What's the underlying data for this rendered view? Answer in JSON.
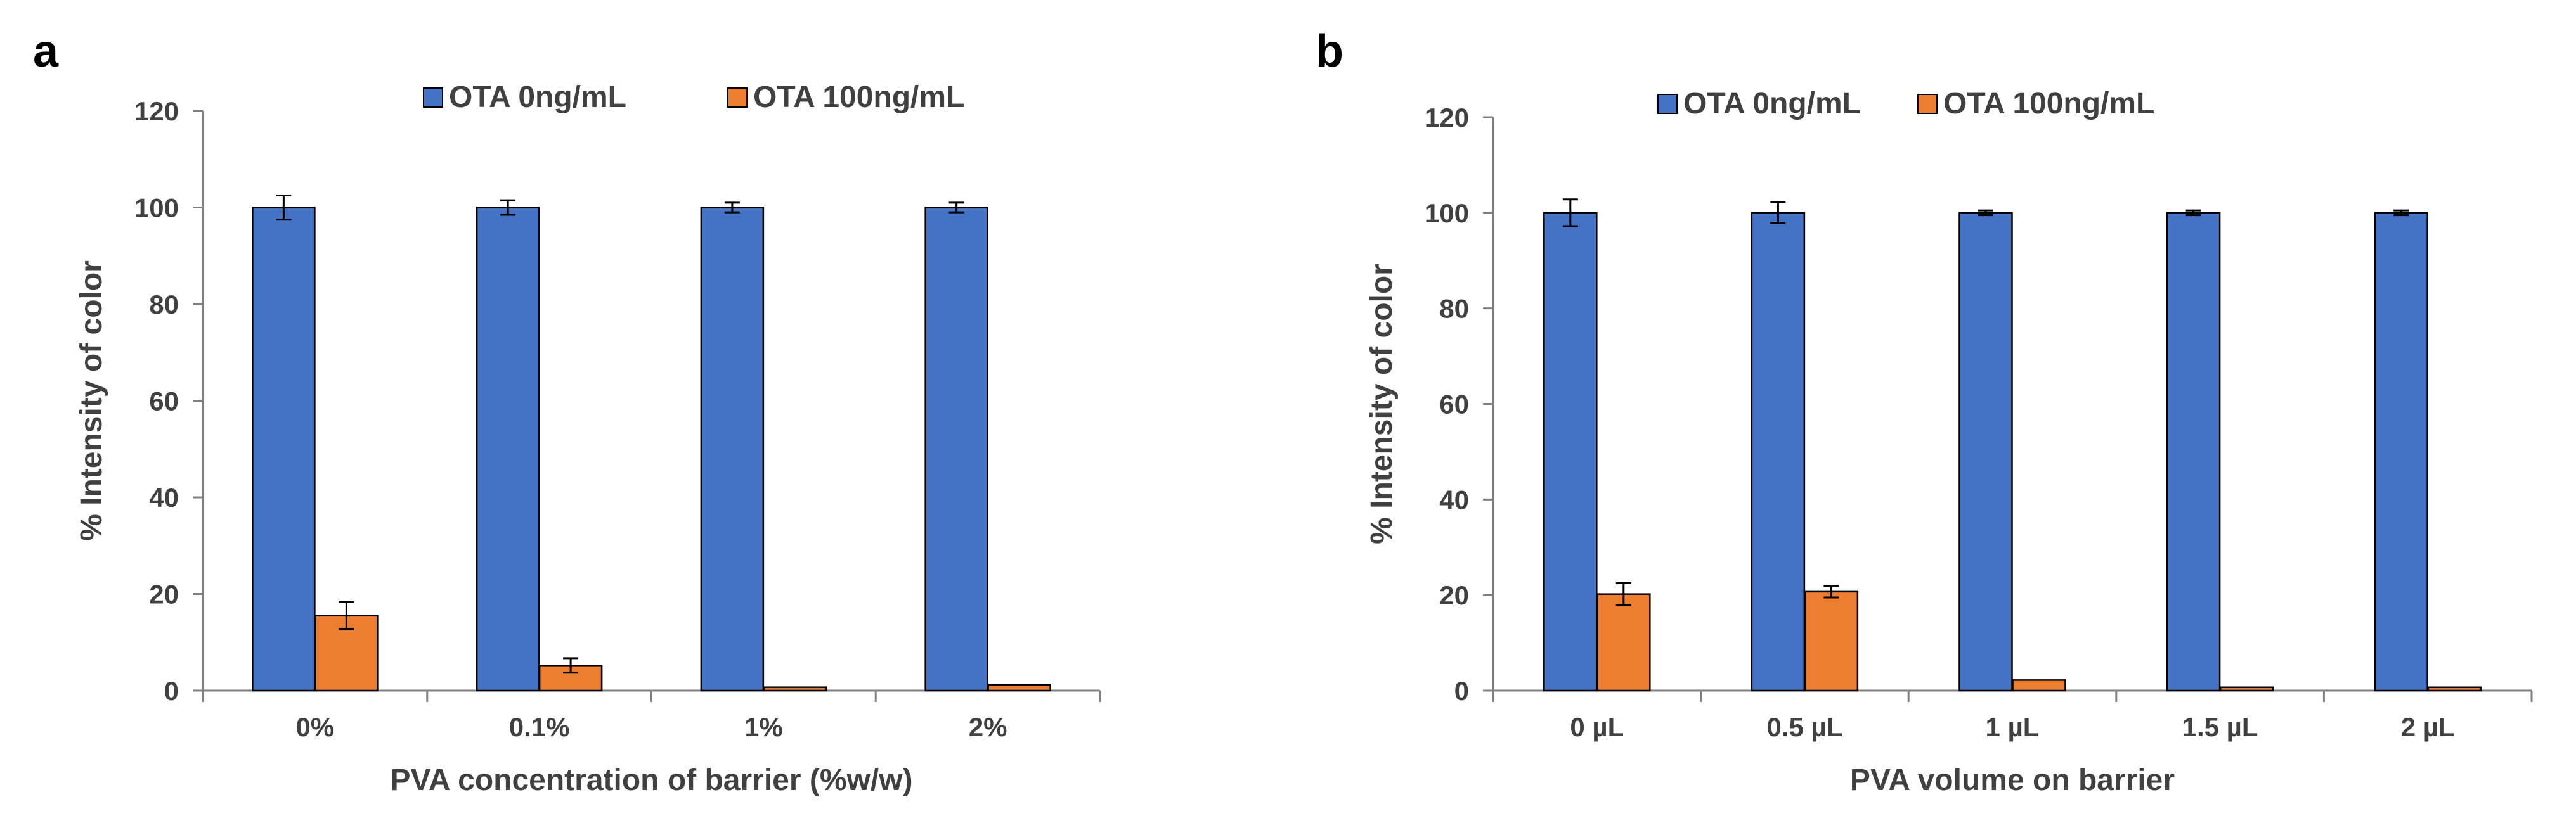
{
  "figure": {
    "panels": [
      "a",
      "b"
    ]
  },
  "chart_data": [
    {
      "panel_label": "a",
      "type": "bar",
      "title": "",
      "xlabel": "PVA concentration of barrier (%w/w)",
      "ylabel": "% Intensity of color",
      "ylim": [
        0,
        120
      ],
      "yticks": [
        0,
        20,
        40,
        60,
        80,
        100,
        120
      ],
      "grid": false,
      "legend_position": "top",
      "categories": [
        "0%",
        "0.1%",
        "1%",
        "2%"
      ],
      "series": [
        {
          "name": "OTA 0ng/mL",
          "color": "#4472C4",
          "values": [
            100,
            100,
            100,
            100
          ],
          "errors": [
            2.5,
            1.5,
            1.0,
            1.0
          ]
        },
        {
          "name": "OTA 100ng/mL",
          "color": "#ED7D31",
          "values": [
            15.5,
            5.2,
            0.7,
            1.2
          ],
          "errors": [
            2.8,
            1.5,
            0,
            0
          ]
        }
      ]
    },
    {
      "panel_label": "b",
      "type": "bar",
      "title": "",
      "xlabel": "PVA volume on barrier",
      "ylabel": "% Intensity of color",
      "ylim": [
        0,
        120
      ],
      "yticks": [
        0,
        20,
        40,
        60,
        80,
        100,
        120
      ],
      "grid": false,
      "legend_position": "top",
      "categories": [
        "0 µL",
        "0.5 µL",
        "1 µL",
        "1.5 µL",
        "2 µL"
      ],
      "series": [
        {
          "name": "OTA 0ng/mL",
          "color": "#4472C4",
          "values": [
            100,
            100,
            100,
            100,
            100
          ],
          "errors": [
            2.8,
            2.2,
            0.5,
            0.5,
            0.5
          ]
        },
        {
          "name": "OTA 100ng/mL",
          "color": "#ED7D31",
          "values": [
            20.2,
            20.7,
            2.2,
            0.7,
            0.7
          ],
          "errors": [
            2.3,
            1.2,
            0,
            0,
            0
          ]
        }
      ]
    }
  ]
}
